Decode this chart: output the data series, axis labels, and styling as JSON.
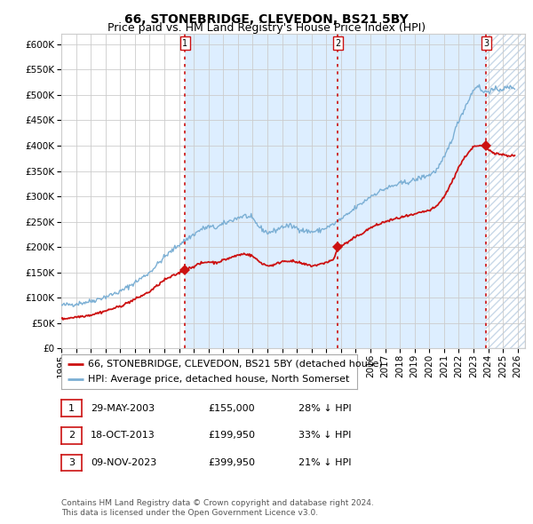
{
  "title": "66, STONEBRIDGE, CLEVEDON, BS21 5BY",
  "subtitle": "Price paid vs. HM Land Registry's House Price Index (HPI)",
  "ylim": [
    0,
    620000
  ],
  "yticks": [
    0,
    50000,
    100000,
    150000,
    200000,
    250000,
    300000,
    350000,
    400000,
    450000,
    500000,
    550000,
    600000
  ],
  "xlim_start": 1995.0,
  "xlim_end": 2026.5,
  "hpi_color": "#7bafd4",
  "price_color": "#cc1111",
  "vline_color": "#cc1111",
  "grid_color": "#cccccc",
  "bg_color": "#ffffff",
  "shade_color": "#ddeeff",
  "hatch_color": "#c8d8e8",
  "legend_label_price": "66, STONEBRIDGE, CLEVEDON, BS21 5BY (detached house)",
  "legend_label_hpi": "HPI: Average price, detached house, North Somerset",
  "sale_dates": [
    2003.41,
    2013.79,
    2023.86
  ],
  "sale_prices": [
    155000,
    199950,
    399950
  ],
  "sale_labels": [
    "1",
    "2",
    "3"
  ],
  "table_rows": [
    [
      "1",
      "29-MAY-2003",
      "£155,000",
      "28% ↓ HPI"
    ],
    [
      "2",
      "18-OCT-2013",
      "£199,950",
      "33% ↓ HPI"
    ],
    [
      "3",
      "09-NOV-2023",
      "£399,950",
      "21% ↓ HPI"
    ]
  ],
  "footnote": "Contains HM Land Registry data © Crown copyright and database right 2024.\nThis data is licensed under the Open Government Licence v3.0.",
  "title_fontsize": 10,
  "subtitle_fontsize": 9,
  "tick_fontsize": 7.5,
  "legend_fontsize": 8,
  "table_fontsize": 8,
  "footnote_fontsize": 6.5
}
